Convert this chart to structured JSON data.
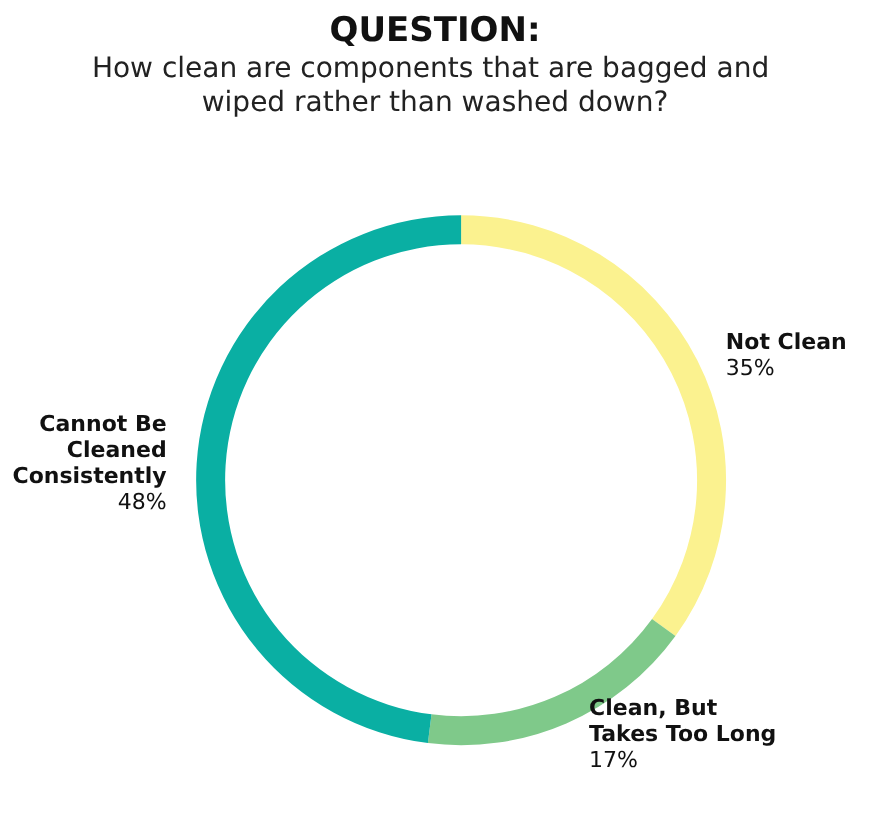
{
  "chart_data": {
    "type": "donut",
    "title": "QUESTION:",
    "subtitle": "How clean are components that are bagged and wiped rather than washed down?",
    "categories": [
      "Not Clean",
      "Clean, But Takes Too Long",
      "Cannot Be Cleaned Consistently"
    ],
    "values": [
      35,
      17,
      48
    ],
    "colors": [
      "#fbf28f",
      "#7fc98a",
      "#0aafa3"
    ],
    "value_labels": [
      "35%",
      "17%",
      "48%"
    ],
    "legend": false
  }
}
